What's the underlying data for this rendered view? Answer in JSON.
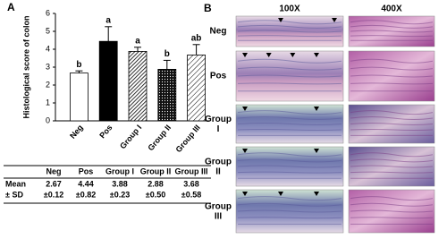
{
  "chart_data": {
    "type": "bar",
    "panel_label": "A",
    "y_label": "Histological score of colon",
    "categories": [
      "Neg",
      "Pos",
      "Group I",
      "Group II",
      "Group III"
    ],
    "values": [
      2.67,
      4.44,
      3.88,
      2.88,
      3.68
    ],
    "errors": [
      0.12,
      0.82,
      0.23,
      0.5,
      0.58
    ],
    "annotations": [
      "b",
      "a",
      "a",
      "b",
      "ab"
    ],
    "fills": [
      "white",
      "black",
      "stripes",
      "dots",
      "stripes-light"
    ],
    "ylim": [
      0,
      6
    ],
    "yticks": [
      0,
      1,
      2,
      3,
      4,
      5,
      6
    ]
  },
  "table": {
    "header": [
      "Neg",
      "Pos",
      "Group I",
      "Group II",
      "Group III"
    ],
    "row_labels": [
      "Mean",
      "± SD"
    ],
    "means": [
      2.67,
      4.44,
      3.88,
      2.88,
      3.68
    ],
    "sds": [
      "±0.12",
      "±0.82",
      "±0.23",
      "±0.50",
      "±0.58"
    ]
  },
  "panel_b": {
    "label": "B",
    "columns": [
      "100X",
      "400X"
    ],
    "rows": [
      "Neg",
      "Pos",
      "Group I",
      "Group II",
      "Group III"
    ]
  }
}
